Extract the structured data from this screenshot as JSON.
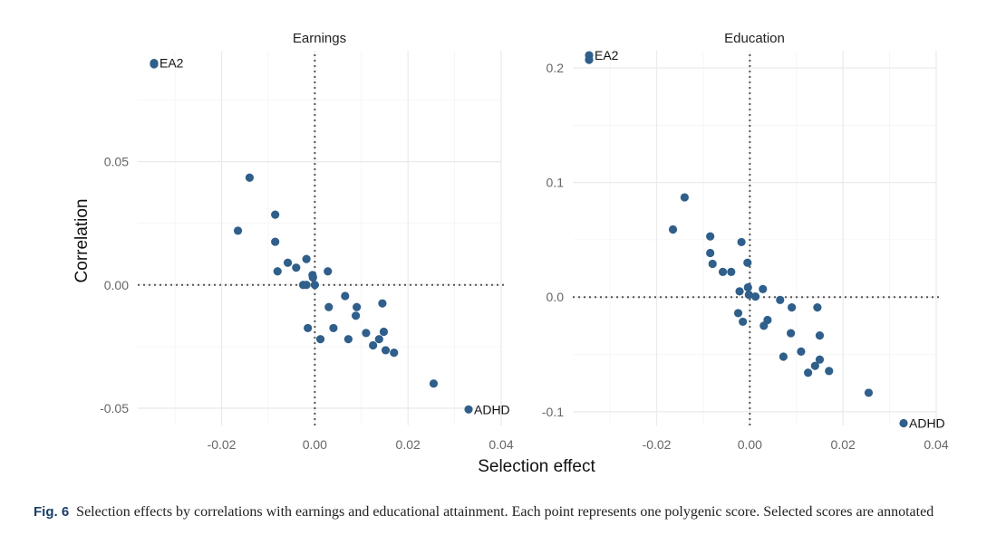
{
  "figure": {
    "caption_label": "Fig. 6",
    "caption_text": "Selection effects by correlations with earnings and educational attainment. Each point represents one polygenic score. Selected scores are annotated"
  },
  "colors": {
    "point": "#2f5f8a"
  },
  "chart_data": [
    {
      "type": "scatter",
      "title": "Earnings",
      "xlabel": "Selection effect",
      "ylabel": "Correlation",
      "xlim": [
        -0.038,
        0.04
      ],
      "ylim": [
        -0.057,
        0.095
      ],
      "xticks": [
        -0.02,
        0.0,
        0.02,
        0.04
      ],
      "xtick_labels": [
        "-0.02",
        "0.00",
        "0.02",
        "0.04"
      ],
      "yticks": [
        -0.05,
        0.0,
        0.05
      ],
      "ytick_labels": [
        "-0.05",
        "0.00",
        "0.05"
      ],
      "reference_lines": {
        "x": 0,
        "y": 0
      },
      "points": [
        {
          "x": -0.0345,
          "y": 0.09,
          "label": "EA2"
        },
        {
          "x": -0.0345,
          "y": 0.0895
        },
        {
          "x": -0.014,
          "y": 0.0435
        },
        {
          "x": -0.0165,
          "y": 0.022
        },
        {
          "x": -0.0085,
          "y": 0.0285
        },
        {
          "x": -0.0085,
          "y": 0.0175
        },
        {
          "x": -0.008,
          "y": 0.0055
        },
        {
          "x": -0.0058,
          "y": 0.009
        },
        {
          "x": -0.004,
          "y": 0.007
        },
        {
          "x": -0.0018,
          "y": 0.0105
        },
        {
          "x": -0.0005,
          "y": 0.004
        },
        {
          "x": -0.0004,
          "y": 0.003
        },
        {
          "x": -0.0025,
          "y": 0.0
        },
        {
          "x": -0.0018,
          "y": 0.0
        },
        {
          "x": 0.0,
          "y": 0.0
        },
        {
          "x": 0.0028,
          "y": 0.0055
        },
        {
          "x": 0.0065,
          "y": -0.0045
        },
        {
          "x": 0.003,
          "y": -0.009
        },
        {
          "x": 0.009,
          "y": -0.009
        },
        {
          "x": 0.0088,
          "y": -0.0125
        },
        {
          "x": 0.0145,
          "y": -0.0075
        },
        {
          "x": -0.0015,
          "y": -0.0175
        },
        {
          "x": 0.004,
          "y": -0.0175
        },
        {
          "x": 0.0012,
          "y": -0.022
        },
        {
          "x": 0.0072,
          "y": -0.022
        },
        {
          "x": 0.011,
          "y": -0.0195
        },
        {
          "x": 0.0125,
          "y": -0.0245
        },
        {
          "x": 0.0138,
          "y": -0.022
        },
        {
          "x": 0.0148,
          "y": -0.019
        },
        {
          "x": 0.0152,
          "y": -0.0265
        },
        {
          "x": 0.017,
          "y": -0.0275
        },
        {
          "x": 0.0255,
          "y": -0.04
        },
        {
          "x": 0.033,
          "y": -0.0505,
          "label": "ADHD"
        }
      ]
    },
    {
      "type": "scatter",
      "title": "Education",
      "xlabel": "Selection effect",
      "ylabel": "Correlation",
      "xlim": [
        -0.038,
        0.04
      ],
      "ylim": [
        -0.112,
        0.215
      ],
      "xticks": [
        -0.02,
        0.0,
        0.02,
        0.04
      ],
      "xtick_labels": [
        "-0.02",
        "0.00",
        "0.02",
        "0.04"
      ],
      "yticks": [
        -0.1,
        0.0,
        0.1,
        0.2
      ],
      "ytick_labels": [
        "-0.1",
        "0.0",
        "0.1",
        "0.2"
      ],
      "reference_lines": {
        "x": 0,
        "y": 0
      },
      "points": [
        {
          "x": -0.0345,
          "y": 0.211,
          "label": "EA2"
        },
        {
          "x": -0.0345,
          "y": 0.207
        },
        {
          "x": -0.014,
          "y": 0.087
        },
        {
          "x": -0.0165,
          "y": 0.059
        },
        {
          "x": -0.0085,
          "y": 0.053
        },
        {
          "x": -0.0085,
          "y": 0.0385
        },
        {
          "x": -0.008,
          "y": 0.029
        },
        {
          "x": -0.0058,
          "y": 0.022
        },
        {
          "x": -0.004,
          "y": 0.022
        },
        {
          "x": -0.0018,
          "y": 0.048
        },
        {
          "x": -0.0005,
          "y": 0.03
        },
        {
          "x": -0.0022,
          "y": 0.005
        },
        {
          "x": -0.0004,
          "y": 0.0085
        },
        {
          "x": -0.0002,
          "y": 0.002
        },
        {
          "x": 0.0012,
          "y": 0.0005
        },
        {
          "x": 0.0028,
          "y": 0.007
        },
        {
          "x": 0.0065,
          "y": -0.0025
        },
        {
          "x": 0.003,
          "y": -0.025
        },
        {
          "x": 0.0038,
          "y": -0.02
        },
        {
          "x": 0.009,
          "y": -0.009
        },
        {
          "x": 0.0145,
          "y": -0.009
        },
        {
          "x": -0.0025,
          "y": -0.014
        },
        {
          "x": -0.0015,
          "y": -0.0215
        },
        {
          "x": 0.0088,
          "y": -0.0315
        },
        {
          "x": 0.015,
          "y": -0.0335
        },
        {
          "x": 0.0072,
          "y": -0.052
        },
        {
          "x": 0.011,
          "y": -0.0475
        },
        {
          "x": 0.015,
          "y": -0.0545
        },
        {
          "x": 0.014,
          "y": -0.06
        },
        {
          "x": 0.0125,
          "y": -0.066
        },
        {
          "x": 0.017,
          "y": -0.0645
        },
        {
          "x": 0.0255,
          "y": -0.0835
        },
        {
          "x": 0.033,
          "y": -0.11,
          "label": "ADHD"
        }
      ]
    }
  ]
}
